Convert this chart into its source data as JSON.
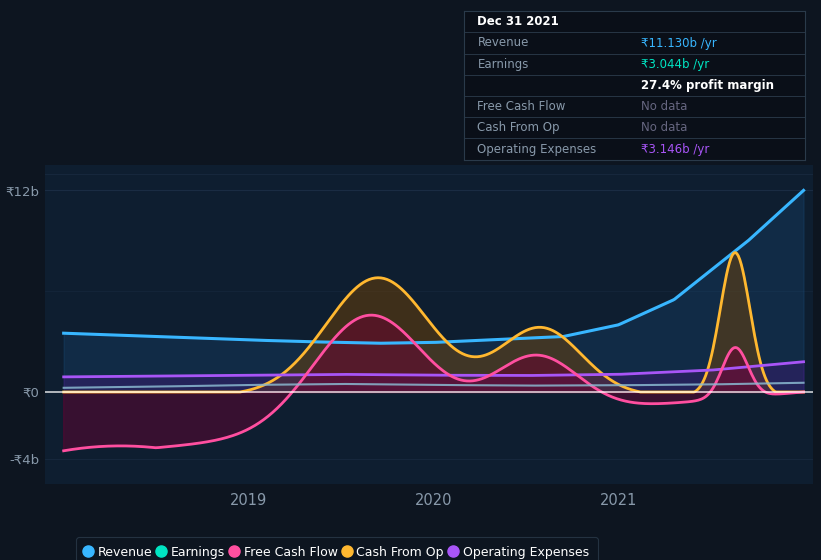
{
  "bg_color": "#0d1520",
  "plot_bg_color": "#0e1e30",
  "info_box_bg": "#0a0f18",
  "info_box_border": "#2a3a4a",
  "series_colors": {
    "revenue": "#38b6ff",
    "earnings": "#00e5c3",
    "free_cash_flow": "#ff4fa0",
    "cash_from_op": "#ffb830",
    "operating_expenses": "#a855f7"
  },
  "fill_colors": {
    "revenue": "#1a5080",
    "cash_from_op": "#7a4500",
    "free_cash_flow": "#6b0030",
    "operating_expenses": "#4a1580"
  },
  "info_box": {
    "date": "Dec 31 2021",
    "revenue_val": "₹11.130b /yr",
    "earnings_val": "₹3.044b /yr",
    "profit_margin": "27.4% profit margin",
    "free_cash_flow_val": "No data",
    "cash_from_op_val": "No data",
    "op_expenses_val": "₹3.146b /yr",
    "revenue_color": "#38b6ff",
    "earnings_color": "#00e5c3",
    "no_data_color": "#666680",
    "op_expenses_color": "#a855f7",
    "label_color": "#8899aa",
    "header_color": "#ffffff",
    "margin_color": "#ffffff"
  },
  "legend_items": [
    "Revenue",
    "Earnings",
    "Free Cash Flow",
    "Cash From Op",
    "Operating Expenses"
  ],
  "legend_colors": [
    "#38b6ff",
    "#00e5c3",
    "#ff4fa0",
    "#ffb830",
    "#a855f7"
  ],
  "ytick_labels": [
    "₹12b",
    "₹0",
    "-₹4b"
  ],
  "ytick_vals": [
    12,
    0,
    -4
  ],
  "xtick_labels": [
    "2019",
    "2020",
    "2021"
  ],
  "xtick_vals": [
    2019,
    2020,
    2021
  ],
  "ylim": [
    -5.5,
    13.5
  ],
  "xlim_left": 2017.9,
  "xlim_right": 2022.05,
  "zero_line_color": "#ffffff",
  "grid_line_color": "#1e3048",
  "tick_color": "#8899aa"
}
